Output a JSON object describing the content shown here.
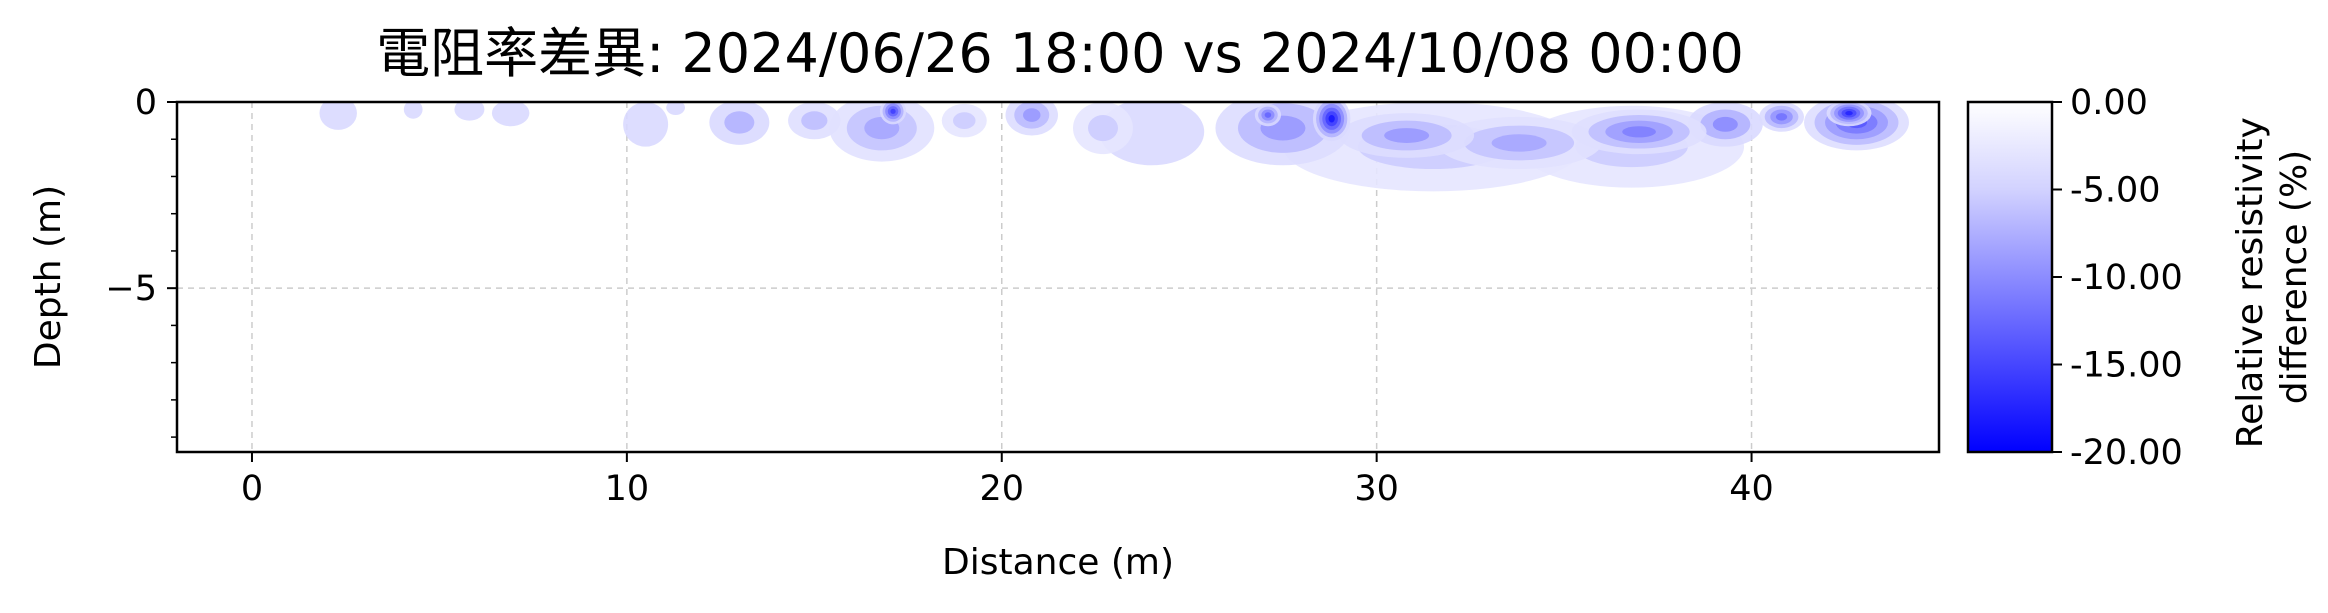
{
  "chart_data": {
    "type": "heatmap",
    "title": "電阻率差異: 2024/06/26 18:00 vs 2024/10/08 00:00",
    "xlabel": "Distance (m)",
    "ylabel": "Depth (m)",
    "xlim": [
      -2,
      45
    ],
    "ylim": [
      -9.4,
      0
    ],
    "x_ticks": [
      0,
      10,
      20,
      30,
      40
    ],
    "x_tick_labels": [
      "0",
      "10",
      "20",
      "30",
      "40"
    ],
    "y_ticks": [
      0,
      -5
    ],
    "y_tick_labels": [
      "0",
      "−5"
    ],
    "grid": true,
    "colorbar": {
      "label": "Relative resistivity difference (%)",
      "label_lines": [
        "Relative resistivity",
        "difference (%)"
      ],
      "range": [
        -20,
        0
      ],
      "ticks": [
        0,
        -5,
        -10,
        -15,
        -20
      ],
      "tick_labels": [
        "0.00",
        "-5.00",
        "-10.00",
        "-15.00",
        "-20.00"
      ],
      "colors": [
        "#ffffff",
        "#0000ff"
      ]
    },
    "zones": [
      {
        "x": 2.3,
        "y": -0.3,
        "rx": 0.5,
        "ry": 0.45,
        "value": -3
      },
      {
        "x": 4.3,
        "y": -0.2,
        "rx": 0.25,
        "ry": 0.25,
        "value": -3
      },
      {
        "x": 5.8,
        "y": -0.2,
        "rx": 0.4,
        "ry": 0.3,
        "value": -3
      },
      {
        "x": 6.9,
        "y": -0.3,
        "rx": 0.5,
        "ry": 0.35,
        "value": -3
      },
      {
        "x": 10.5,
        "y": -0.6,
        "rx": 0.6,
        "ry": 0.6,
        "value": -3
      },
      {
        "x": 11.3,
        "y": -0.15,
        "rx": 0.25,
        "ry": 0.2,
        "value": -3
      },
      {
        "x": 13.0,
        "y": -0.55,
        "rx": 0.8,
        "ry": 0.6,
        "value": -6
      },
      {
        "x": 15.0,
        "y": -0.5,
        "rx": 0.7,
        "ry": 0.5,
        "value": -5
      },
      {
        "x": 16.8,
        "y": -0.7,
        "rx": 1.4,
        "ry": 0.9,
        "value": -7
      },
      {
        "x": 17.1,
        "y": -0.25,
        "rx": 0.35,
        "ry": 0.35,
        "value": -15
      },
      {
        "x": 19.0,
        "y": -0.5,
        "rx": 0.6,
        "ry": 0.45,
        "value": -4
      },
      {
        "x": 20.8,
        "y": -0.35,
        "rx": 0.7,
        "ry": 0.55,
        "value": -8
      },
      {
        "x": 22.7,
        "y": -0.7,
        "rx": 0.8,
        "ry": 0.7,
        "value": -4
      },
      {
        "x": 24.0,
        "y": -0.8,
        "rx": 1.4,
        "ry": 0.9,
        "value": -3
      },
      {
        "x": 27.5,
        "y": -0.7,
        "rx": 1.8,
        "ry": 1.0,
        "value": -8
      },
      {
        "x": 28.8,
        "y": -0.45,
        "rx": 0.5,
        "ry": 0.6,
        "value": -18
      },
      {
        "x": 27.1,
        "y": -0.35,
        "rx": 0.35,
        "ry": 0.3,
        "value": -12
      },
      {
        "x": 31.5,
        "y": -1.2,
        "rx": 4.0,
        "ry": 1.2,
        "value": -4
      },
      {
        "x": 30.8,
        "y": -0.9,
        "rx": 1.8,
        "ry": 0.6,
        "value": -8
      },
      {
        "x": 33.8,
        "y": -1.1,
        "rx": 2.2,
        "ry": 0.7,
        "value": -7
      },
      {
        "x": 36.8,
        "y": -1.2,
        "rx": 3.0,
        "ry": 1.1,
        "value": -4
      },
      {
        "x": 37.0,
        "y": -0.8,
        "rx": 1.8,
        "ry": 0.6,
        "value": -10
      },
      {
        "x": 39.3,
        "y": -0.6,
        "rx": 1.0,
        "ry": 0.6,
        "value": -9
      },
      {
        "x": 40.8,
        "y": -0.4,
        "rx": 0.6,
        "ry": 0.4,
        "value": -11
      },
      {
        "x": 42.8,
        "y": -0.55,
        "rx": 1.4,
        "ry": 0.75,
        "value": -13
      },
      {
        "x": 42.6,
        "y": -0.3,
        "rx": 0.6,
        "ry": 0.35,
        "value": -17
      }
    ]
  }
}
